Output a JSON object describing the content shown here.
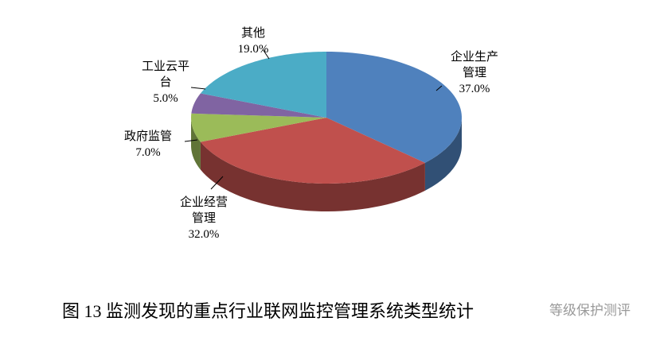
{
  "chart_data": {
    "type": "pie3d",
    "categories": [
      "企业生产管理",
      "企业经营管理",
      "政府监管",
      "工业云平台",
      "其他"
    ],
    "values": [
      37,
      32,
      7,
      5,
      19
    ],
    "value_labels": [
      "37.0%",
      "32.0%",
      "7.0%",
      "5.0%",
      "19.0%"
    ],
    "colors": [
      "#4f81bd",
      "#c0504d",
      "#9bbb59",
      "#8064a2",
      "#4bacc6"
    ],
    "caption": "图 13 监测发现的重点行业联网监控管理系统类型统计",
    "watermark": "等级保护测评"
  }
}
